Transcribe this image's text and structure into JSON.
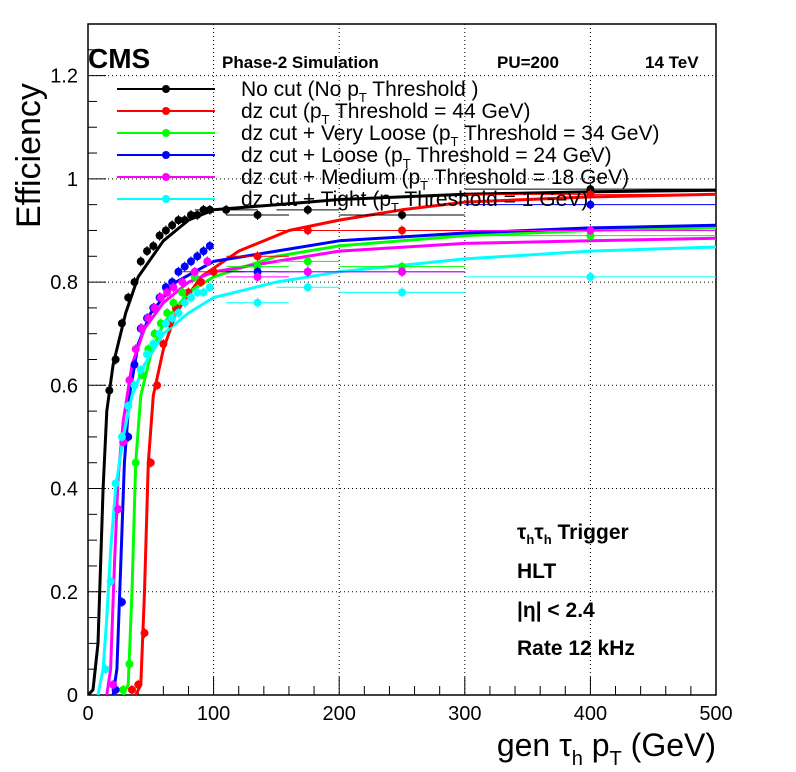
{
  "header": {
    "experiment": "CMS",
    "status": "Phase-2 Simulation",
    "pileup": "PU=200",
    "energy": "14 TeV"
  },
  "axes": {
    "ylabel": "Efficiency",
    "xlabel_prefix": "gen τ",
    "xlabel_sub": "h",
    "xlabel_mid": " p",
    "xlabel_sub2": "T",
    "xlabel_suffix": " (GeV)"
  },
  "legend": [
    {
      "pre": "No cut (No p",
      "sub": "T",
      "post": " Threshold )"
    },
    {
      "pre": "dz cut (p",
      "sub": "T",
      "post": " Threshold = 44 GeV)"
    },
    {
      "pre": "dz cut + Very Loose (p",
      "sub": "T",
      "post": " Threshold = 34 GeV)"
    },
    {
      "pre": "dz cut + Loose (p",
      "sub": "T",
      "post": " Threshold = 24 GeV)"
    },
    {
      "pre": "dz cut + Medium (p",
      "sub": "T",
      "post": " Threshold = 18 GeV)"
    },
    {
      "pre": "dz cut + Tight (p",
      "sub": "T",
      "post": " Threshold = 1 GeV)"
    }
  ],
  "annotations": {
    "trigger_a": "τ",
    "trigger_a_sub": "h",
    "trigger_b": "τ",
    "trigger_b_sub": "h",
    "trigger_text": " Trigger",
    "level": "HLT",
    "eta_cut": "|η| < 2.4",
    "rate": "Rate 12 kHz"
  },
  "chart_data": {
    "type": "scatter",
    "xlim": [
      0,
      500
    ],
    "ylim": [
      0,
      1.3
    ],
    "x_ticks": [
      0,
      100,
      200,
      300,
      400,
      500
    ],
    "y_ticks": [
      0,
      0.2,
      0.4,
      0.6,
      0.8,
      1,
      1.2
    ],
    "y_tick_labels": [
      "0",
      "0.2",
      "0.4",
      "0.6",
      "0.8",
      "1",
      "1.2"
    ],
    "grid": true,
    "legend_position": "top",
    "series": [
      {
        "name": "No cut (No pT Threshold )",
        "color": "#000000",
        "points": [
          [
            17,
            0.59
          ],
          [
            22,
            0.65
          ],
          [
            27,
            0.72
          ],
          [
            32,
            0.77
          ],
          [
            37,
            0.8
          ],
          [
            42,
            0.84
          ],
          [
            47,
            0.86
          ],
          [
            52,
            0.87
          ],
          [
            57,
            0.89
          ],
          [
            62,
            0.9
          ],
          [
            67,
            0.91
          ],
          [
            72,
            0.92
          ],
          [
            77,
            0.92
          ],
          [
            82,
            0.93
          ],
          [
            87,
            0.93
          ],
          [
            92,
            0.94
          ],
          [
            97,
            0.94
          ],
          [
            110,
            0.94
          ],
          [
            135,
            0.93
          ],
          [
            175,
            0.94
          ],
          [
            250,
            0.93
          ],
          [
            400,
            0.98
          ]
        ],
        "fit": [
          [
            0,
            0.0
          ],
          [
            4,
            0.01
          ],
          [
            8,
            0.1
          ],
          [
            12,
            0.4
          ],
          [
            15,
            0.55
          ],
          [
            20,
            0.64
          ],
          [
            30,
            0.74
          ],
          [
            40,
            0.81
          ],
          [
            60,
            0.88
          ],
          [
            80,
            0.92
          ],
          [
            100,
            0.94
          ],
          [
            150,
            0.95
          ],
          [
            200,
            0.96
          ],
          [
            300,
            0.97
          ],
          [
            400,
            0.975
          ],
          [
            500,
            0.978
          ]
        ]
      },
      {
        "name": "dz cut (pT Threshold = 44 GeV)",
        "color": "#ff0000",
        "points": [
          [
            35,
            0.01
          ],
          [
            40,
            0.02
          ],
          [
            45,
            0.12
          ],
          [
            50,
            0.45
          ],
          [
            55,
            0.6
          ],
          [
            60,
            0.68
          ],
          [
            65,
            0.72
          ],
          [
            70,
            0.75
          ],
          [
            80,
            0.78
          ],
          [
            90,
            0.8
          ],
          [
            100,
            0.82
          ],
          [
            135,
            0.85
          ],
          [
            175,
            0.9
          ],
          [
            250,
            0.9
          ],
          [
            400,
            0.97
          ]
        ],
        "fit": [
          [
            38,
            0.0
          ],
          [
            42,
            0.02
          ],
          [
            45,
            0.2
          ],
          [
            48,
            0.45
          ],
          [
            52,
            0.58
          ],
          [
            60,
            0.67
          ],
          [
            70,
            0.74
          ],
          [
            90,
            0.81
          ],
          [
            120,
            0.86
          ],
          [
            160,
            0.9
          ],
          [
            200,
            0.92
          ],
          [
            250,
            0.94
          ],
          [
            300,
            0.955
          ],
          [
            400,
            0.965
          ],
          [
            500,
            0.97
          ]
        ]
      },
      {
        "name": "dz cut + Very Loose (pT Threshold = 34 GeV)",
        "color": "#00ff00",
        "points": [
          [
            28,
            0.01
          ],
          [
            33,
            0.06
          ],
          [
            38,
            0.45
          ],
          [
            43,
            0.62
          ],
          [
            48,
            0.67
          ],
          [
            53,
            0.7
          ],
          [
            58,
            0.72
          ],
          [
            63,
            0.74
          ],
          [
            68,
            0.76
          ],
          [
            75,
            0.78
          ],
          [
            85,
            0.81
          ],
          [
            95,
            0.84
          ],
          [
            135,
            0.83
          ],
          [
            175,
            0.84
          ],
          [
            250,
            0.83
          ],
          [
            400,
            0.89
          ]
        ],
        "fit": [
          [
            28,
            0.0
          ],
          [
            32,
            0.02
          ],
          [
            35,
            0.2
          ],
          [
            38,
            0.45
          ],
          [
            42,
            0.58
          ],
          [
            50,
            0.66
          ],
          [
            60,
            0.72
          ],
          [
            80,
            0.78
          ],
          [
            100,
            0.81
          ],
          [
            150,
            0.85
          ],
          [
            200,
            0.87
          ],
          [
            300,
            0.89
          ],
          [
            400,
            0.9
          ],
          [
            500,
            0.905
          ]
        ]
      },
      {
        "name": "dz cut + Loose (pT Threshold = 24 GeV)",
        "color": "#0000ff",
        "points": [
          [
            22,
            0.01
          ],
          [
            27,
            0.18
          ],
          [
            32,
            0.5
          ],
          [
            37,
            0.64
          ],
          [
            42,
            0.71
          ],
          [
            47,
            0.73
          ],
          [
            52,
            0.75
          ],
          [
            57,
            0.77
          ],
          [
            62,
            0.79
          ],
          [
            67,
            0.8
          ],
          [
            72,
            0.82
          ],
          [
            77,
            0.83
          ],
          [
            82,
            0.84
          ],
          [
            87,
            0.85
          ],
          [
            92,
            0.86
          ],
          [
            97,
            0.87
          ],
          [
            135,
            0.82
          ],
          [
            175,
            0.82
          ],
          [
            250,
            0.82
          ],
          [
            400,
            0.95
          ]
        ],
        "fit": [
          [
            20,
            0.0
          ],
          [
            23,
            0.05
          ],
          [
            26,
            0.25
          ],
          [
            29,
            0.45
          ],
          [
            33,
            0.58
          ],
          [
            40,
            0.68
          ],
          [
            50,
            0.74
          ],
          [
            70,
            0.8
          ],
          [
            100,
            0.84
          ],
          [
            150,
            0.86
          ],
          [
            200,
            0.88
          ],
          [
            300,
            0.895
          ],
          [
            400,
            0.905
          ],
          [
            500,
            0.91
          ]
        ]
      },
      {
        "name": "dz cut + Medium (pT Threshold = 18 GeV)",
        "color": "#ff00ff",
        "points": [
          [
            20,
            0.02
          ],
          [
            24,
            0.36
          ],
          [
            28,
            0.49
          ],
          [
            33,
            0.61
          ],
          [
            38,
            0.67
          ],
          [
            43,
            0.71
          ],
          [
            48,
            0.73
          ],
          [
            53,
            0.75
          ],
          [
            58,
            0.77
          ],
          [
            63,
            0.78
          ],
          [
            68,
            0.79
          ],
          [
            75,
            0.8
          ],
          [
            85,
            0.82
          ],
          [
            95,
            0.84
          ],
          [
            135,
            0.81
          ],
          [
            175,
            0.82
          ],
          [
            250,
            0.82
          ],
          [
            400,
            0.9
          ]
        ],
        "fit": [
          [
            15,
            0.0
          ],
          [
            18,
            0.05
          ],
          [
            21,
            0.25
          ],
          [
            24,
            0.42
          ],
          [
            28,
            0.53
          ],
          [
            35,
            0.64
          ],
          [
            45,
            0.71
          ],
          [
            60,
            0.76
          ],
          [
            80,
            0.8
          ],
          [
            100,
            0.82
          ],
          [
            150,
            0.84
          ],
          [
            200,
            0.86
          ],
          [
            300,
            0.875
          ],
          [
            400,
            0.88
          ],
          [
            500,
            0.885
          ]
        ]
      },
      {
        "name": "dz cut + Tight (pT Threshold = 1 GeV)",
        "color": "#00ffff",
        "points": [
          [
            14,
            0.05
          ],
          [
            18,
            0.22
          ],
          [
            22,
            0.41
          ],
          [
            27,
            0.5
          ],
          [
            32,
            0.56
          ],
          [
            37,
            0.6
          ],
          [
            42,
            0.63
          ],
          [
            47,
            0.66
          ],
          [
            52,
            0.68
          ],
          [
            57,
            0.7
          ],
          [
            62,
            0.72
          ],
          [
            67,
            0.73
          ],
          [
            72,
            0.74
          ],
          [
            77,
            0.76
          ],
          [
            82,
            0.77
          ],
          [
            87,
            0.78
          ],
          [
            92,
            0.78
          ],
          [
            97,
            0.79
          ],
          [
            135,
            0.76
          ],
          [
            175,
            0.79
          ],
          [
            250,
            0.78
          ],
          [
            400,
            0.81
          ]
        ],
        "fit": [
          [
            8,
            0.0
          ],
          [
            12,
            0.05
          ],
          [
            15,
            0.15
          ],
          [
            18,
            0.28
          ],
          [
            22,
            0.4
          ],
          [
            28,
            0.5
          ],
          [
            35,
            0.58
          ],
          [
            45,
            0.64
          ],
          [
            60,
            0.7
          ],
          [
            80,
            0.74
          ],
          [
            100,
            0.77
          ],
          [
            150,
            0.8
          ],
          [
            200,
            0.82
          ],
          [
            300,
            0.845
          ],
          [
            400,
            0.86
          ],
          [
            500,
            0.868
          ]
        ]
      }
    ]
  }
}
